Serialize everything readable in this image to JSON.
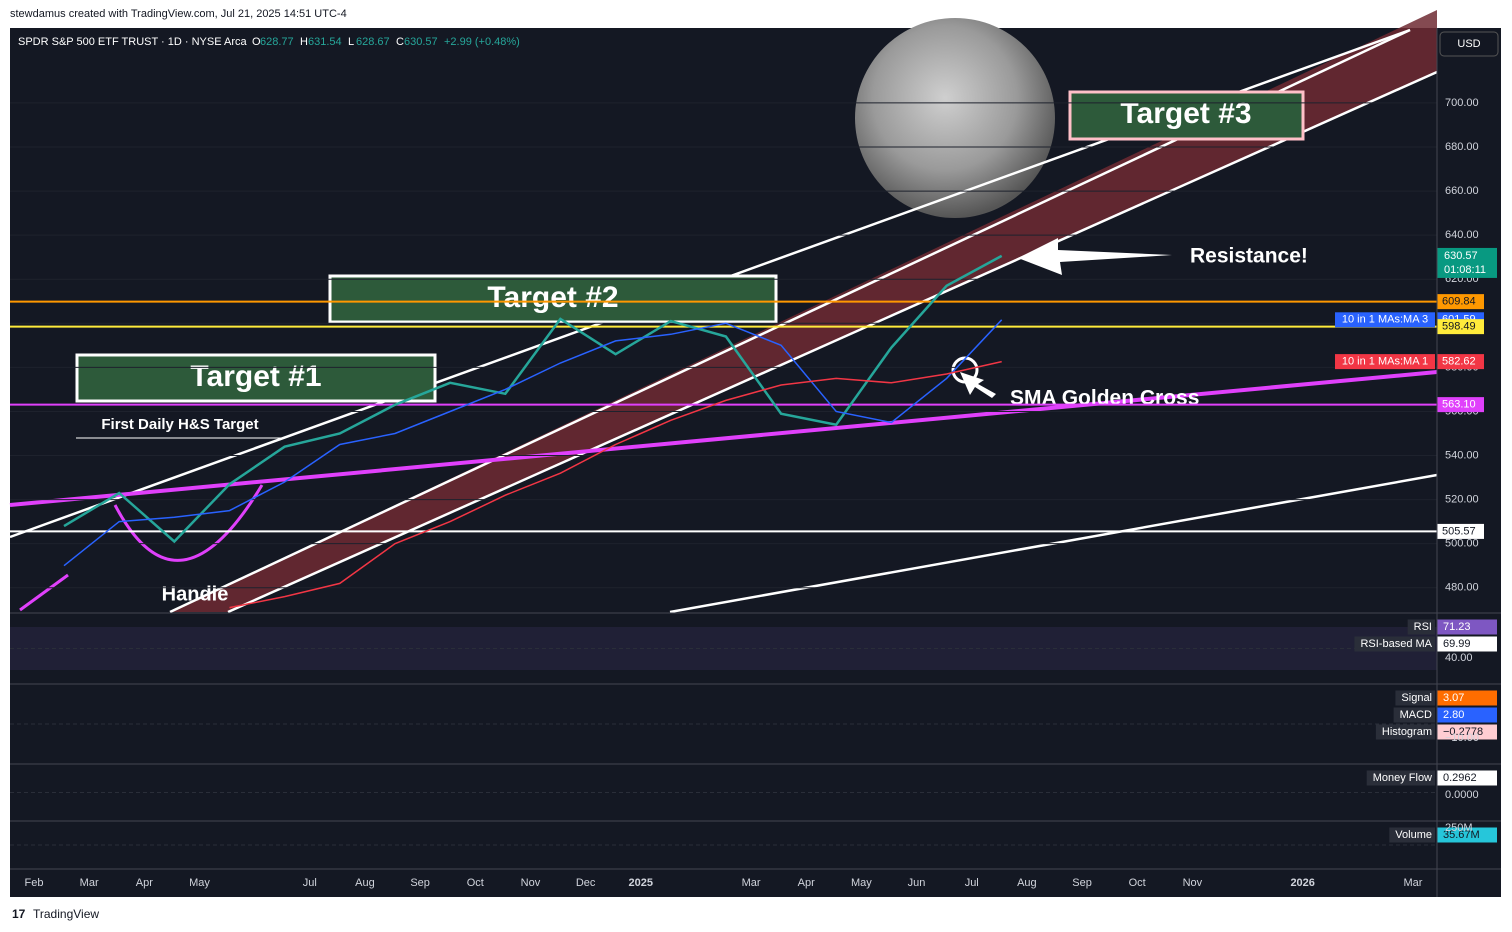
{
  "header": {
    "credit": "stewdamus created with TradingView.com, Jul 21, 2025 14:51 UTC-4",
    "symbol": "SPDR S&P 500 ETF TRUST · 1D · NYSE Arca",
    "ohlc": [
      {
        "label": "O",
        "value": 628.77
      },
      {
        "label": "H",
        "value": 631.54
      },
      {
        "label": "L",
        "value": 628.67
      },
      {
        "label": "C",
        "value": 630.57
      }
    ],
    "change": "+2.99 (+0.48%)"
  },
  "currency": "USD",
  "chart_data": {
    "type": "line",
    "categories": [
      "Feb",
      "Mar",
      "Apr",
      "May",
      null,
      "Jul",
      "Aug",
      "Sep",
      "Oct",
      "Nov",
      "Dec",
      "2025",
      null,
      "Mar",
      "Apr",
      "May",
      "Jun",
      "Jul",
      "Aug",
      "Sep",
      "Oct",
      "Nov",
      null,
      "2026",
      null,
      "Mar"
    ],
    "series": [
      {
        "color": "#26a69a",
        "values": [
          508,
          523,
          501,
          527,
          544,
          550,
          563,
          573,
          568,
          602,
          586,
          601,
          594,
          559,
          554,
          589,
          617,
          630.57,
          null,
          null,
          null,
          null,
          null,
          null,
          null,
          null
        ]
      },
      {
        "name": "10 in 1 MAs:MA 3",
        "color": "#2962ff",
        "values": [
          490,
          510,
          512,
          515,
          528,
          545,
          550,
          560,
          570,
          582,
          592,
          595,
          600,
          590,
          560,
          555,
          575,
          601.59,
          null,
          null,
          null,
          null,
          null,
          null,
          null,
          null
        ]
      },
      {
        "name": "10 in 1 MAs:MA 1",
        "color": "#f23645",
        "values": [
          null,
          null,
          null,
          471,
          476,
          482,
          500,
          510,
          522,
          532,
          545,
          556,
          565,
          572,
          575,
          573,
          577,
          582.62,
          null,
          null,
          null,
          null,
          null,
          null,
          null,
          null
        ]
      }
    ],
    "ylim": [
      469,
      734
    ],
    "yticks": [
      {
        "value": 480,
        "label": "480.00"
      },
      {
        "value": 500,
        "label": "500.00"
      },
      {
        "value": 520,
        "label": "520.00"
      },
      {
        "value": 540,
        "label": "540.00"
      },
      {
        "value": 560,
        "label": "560.00"
      },
      {
        "value": 580,
        "label": "580.00"
      },
      {
        "value": 600,
        "label": "600.00"
      },
      {
        "value": 620,
        "label": "620.00"
      },
      {
        "value": 640,
        "label": "640.00"
      },
      {
        "value": 660,
        "label": "660.00"
      },
      {
        "value": 680,
        "label": "680.00"
      },
      {
        "value": 700,
        "label": "700.00"
      }
    ],
    "last_price": {
      "value": 630.57,
      "countdown": "01:08:11",
      "color": "#089981"
    },
    "price_lines": [
      {
        "value": 609.84,
        "color": "#ff9800",
        "line": true
      },
      {
        "value": 601.59,
        "color": "#2962ff",
        "line": false,
        "series": 1
      },
      {
        "value": 598.49,
        "color": "#ffeb3b",
        "line": true
      },
      {
        "value": 582.62,
        "color": "#f23645",
        "line": false,
        "series": 2
      },
      {
        "value": 563.1,
        "label": "563.10",
        "color": "#e040fb",
        "line": true
      },
      {
        "value": 505.57,
        "color": "#ffffff",
        "line": true
      }
    ],
    "annotations": {
      "target_1": "Target #1",
      "target_2": "Target #2",
      "target_3": "Target #3",
      "hs_target": "First Daily H&S Target",
      "handle": "Handle",
      "resistance": "Resistance!",
      "golden_cross": "SMA Golden Cross"
    }
  },
  "panes": [
    {
      "items": [
        {
          "name": "RSI",
          "value": "71.23",
          "color": "#7e57c2"
        },
        {
          "name": "RSI-based MA",
          "value": "69.99",
          "color": "#ffffff"
        }
      ],
      "tick": "40.00"
    },
    {
      "items": [
        {
          "name": "Signal",
          "value": "3.07",
          "color": "#ff6d00"
        },
        {
          "name": "MACD",
          "value": "2.80",
          "color": "#2962ff"
        },
        {
          "name": "Histogram",
          "value": "−0.2778",
          "color": "#ffcdd2"
        }
      ],
      "tick": "−10.00"
    },
    {
      "items": [
        {
          "name": "Money Flow",
          "value": "0.2962",
          "color": "#ffffff"
        }
      ],
      "tick": "0.0000"
    },
    {
      "items": [
        {
          "name": "Volume",
          "value": "35.67M",
          "color": "#26c6da"
        }
      ],
      "tick": "250M"
    }
  ],
  "footer": "TradingView"
}
